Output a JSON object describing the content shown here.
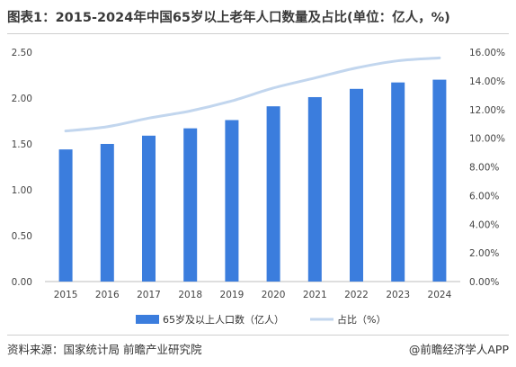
{
  "title": "图表1：2015-2024年中国65岁以上老年人口数量及占比(单位：亿人，%)",
  "source": "资料来源：国家统计局 前瞻产业研究院",
  "brand": "@前瞻经济学人APP",
  "colors": {
    "bar": "#3b7ddd",
    "line": "#c2d6ee",
    "grid": "#e6e6e6",
    "axis": "#444444"
  },
  "chart_data": {
    "type": "bar",
    "categories": [
      "2015",
      "2016",
      "2017",
      "2018",
      "2019",
      "2020",
      "2021",
      "2022",
      "2023",
      "2024"
    ],
    "series": [
      {
        "name": "65岁及以上人口数（亿人）",
        "type": "bar",
        "axis": "left",
        "values": [
          1.44,
          1.5,
          1.59,
          1.67,
          1.76,
          1.91,
          2.01,
          2.1,
          2.17,
          2.2
        ]
      },
      {
        "name": "占比（%）",
        "type": "line",
        "axis": "right",
        "values": [
          10.5,
          10.8,
          11.4,
          11.9,
          12.6,
          13.5,
          14.2,
          14.9,
          15.4,
          15.6
        ]
      }
    ],
    "yleft": {
      "lim": [
        0,
        2.5
      ],
      "ticks": [
        "0.00",
        "0.50",
        "1.00",
        "1.50",
        "2.00",
        "2.50"
      ]
    },
    "yright": {
      "lim": [
        0,
        16
      ],
      "ticks": [
        "0.00%",
        "2.00%",
        "4.00%",
        "6.00%",
        "8.00%",
        "10.00%",
        "12.00%",
        "14.00%",
        "16.00%"
      ]
    },
    "grid": false,
    "legend": "bottom"
  }
}
